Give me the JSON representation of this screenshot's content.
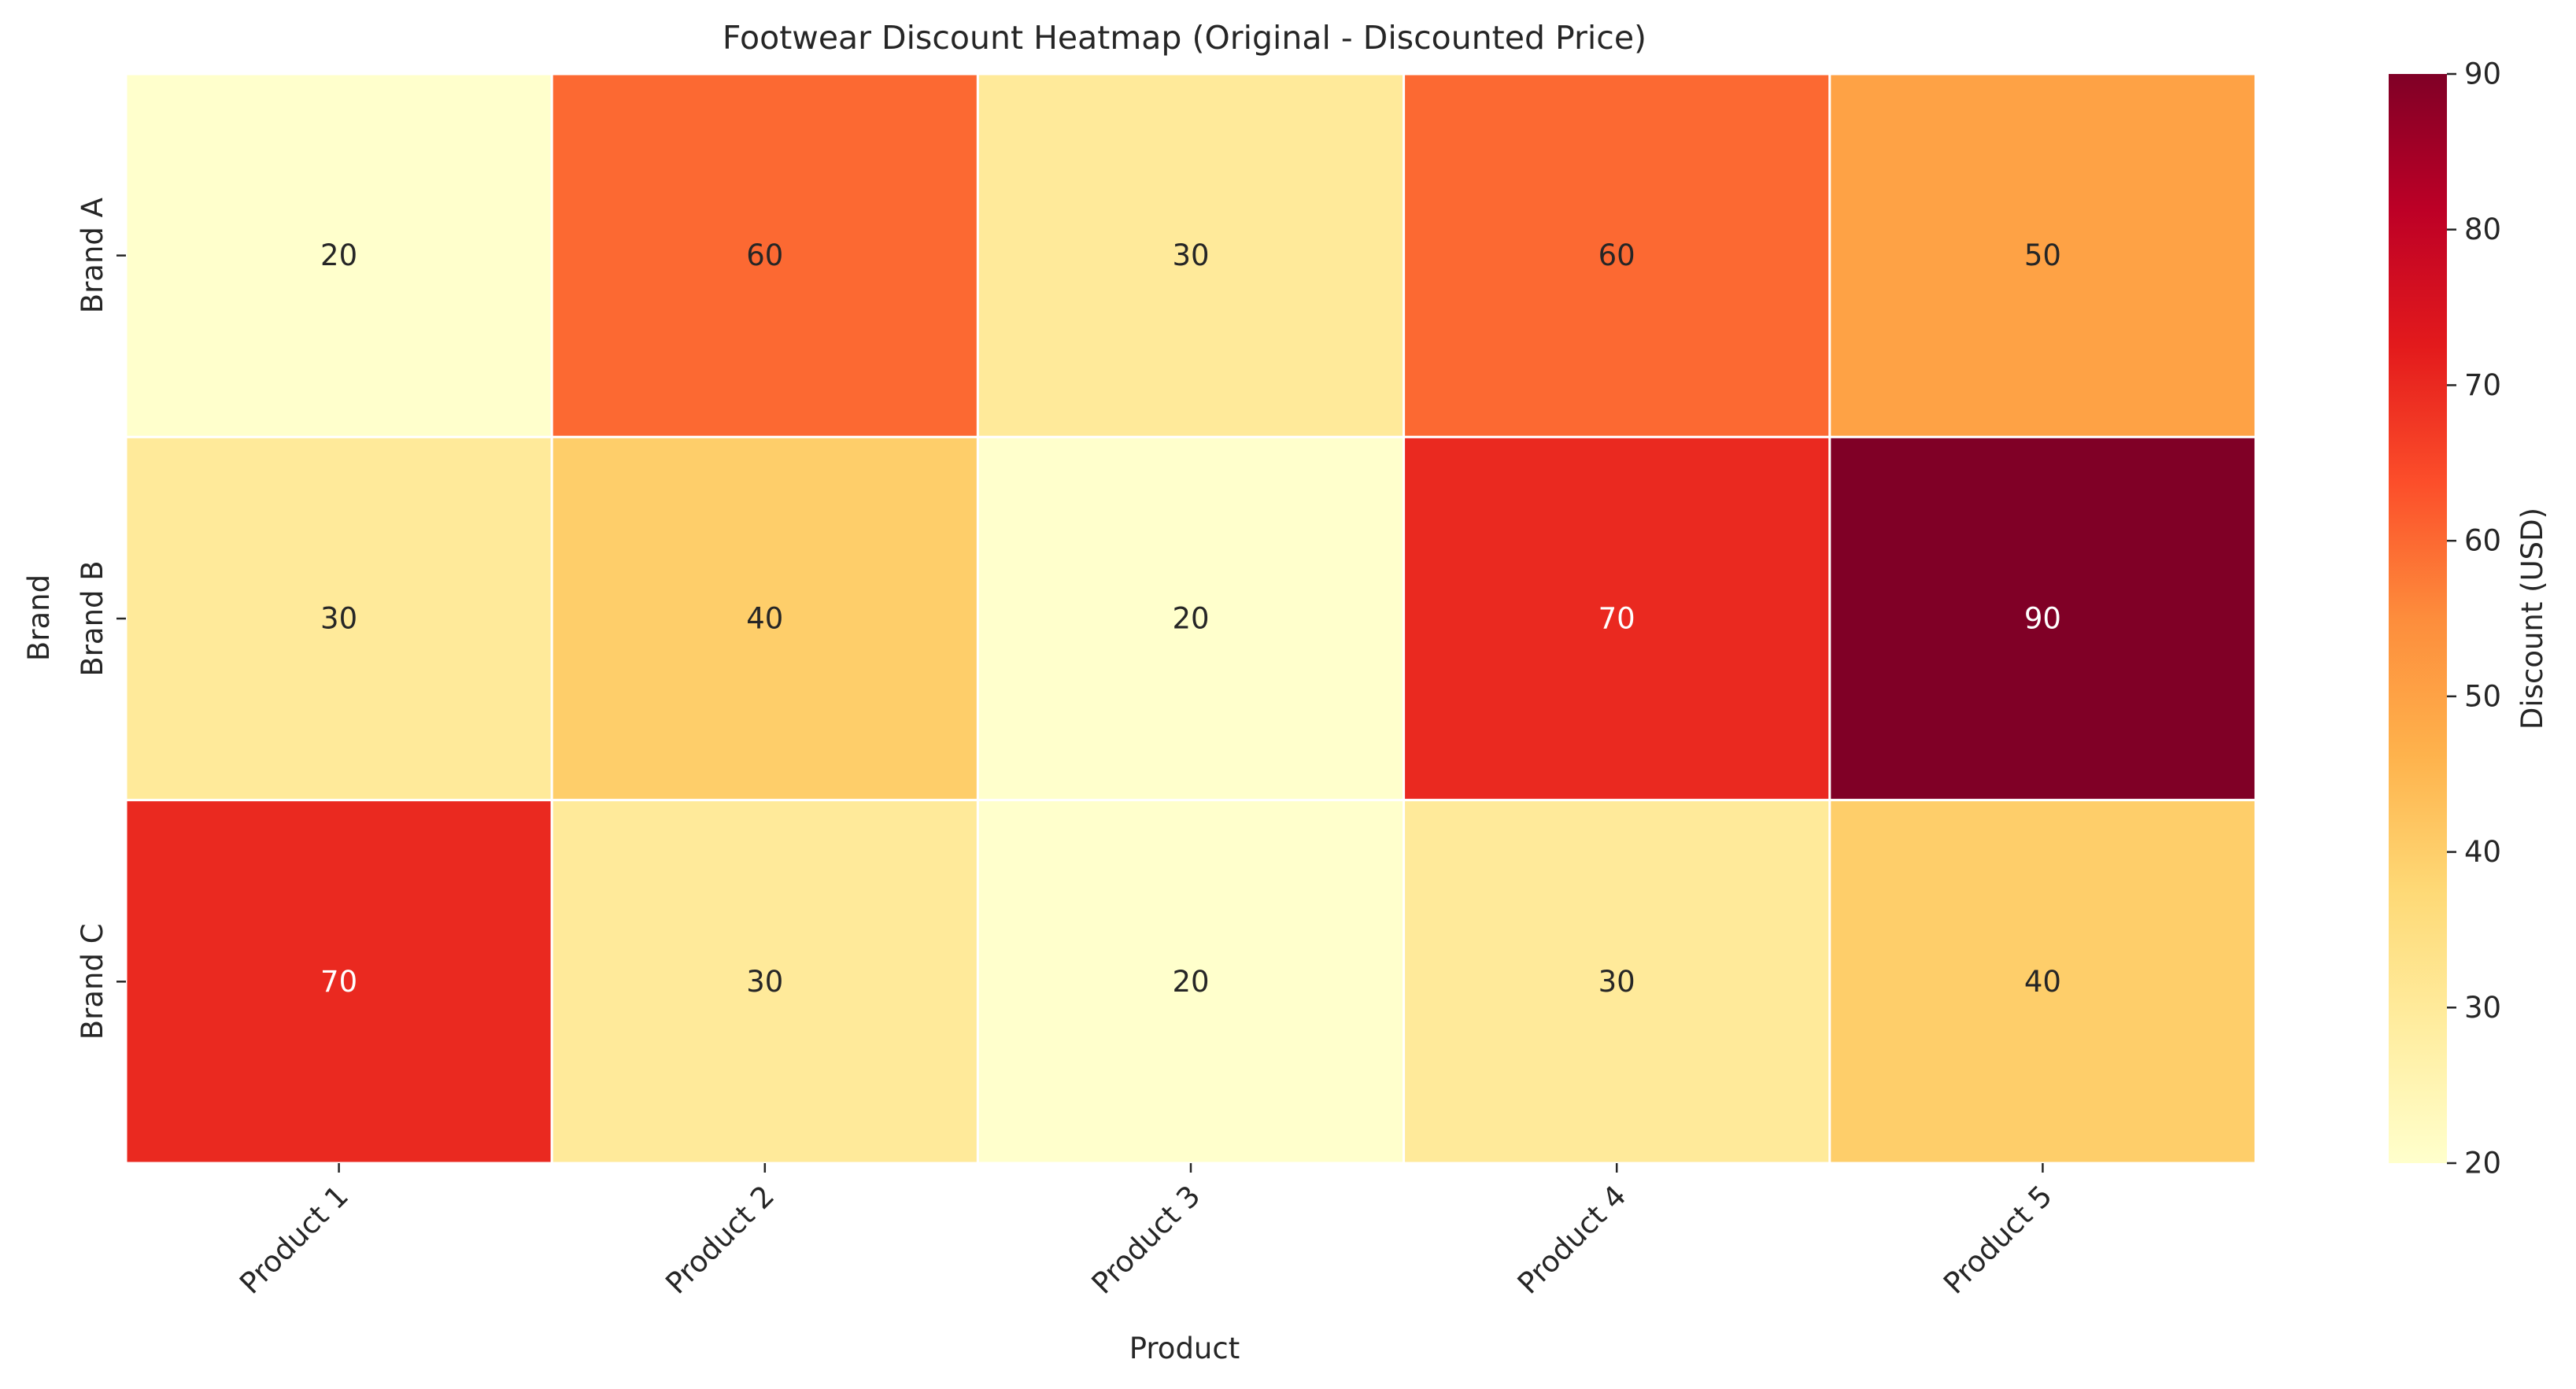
{
  "chart_data": {
    "type": "heatmap",
    "title": "Footwear Discount Heatmap (Original - Discounted Price)",
    "xlabel": "Product",
    "ylabel": "Brand",
    "x_categories": [
      "Product 1",
      "Product 2",
      "Product 3",
      "Product 4",
      "Product 5"
    ],
    "y_categories": [
      "Brand A",
      "Brand B",
      "Brand C"
    ],
    "values": [
      [
        20,
        60,
        30,
        60,
        50
      ],
      [
        30,
        40,
        20,
        70,
        90
      ],
      [
        70,
        30,
        20,
        30,
        40
      ]
    ],
    "colorbar": {
      "label": "Discount (USD)",
      "range": [
        20,
        90
      ],
      "ticks": [
        20,
        30,
        40,
        50,
        60,
        70,
        80,
        90
      ],
      "colormap": "YlOrRd"
    },
    "annotations": true
  }
}
